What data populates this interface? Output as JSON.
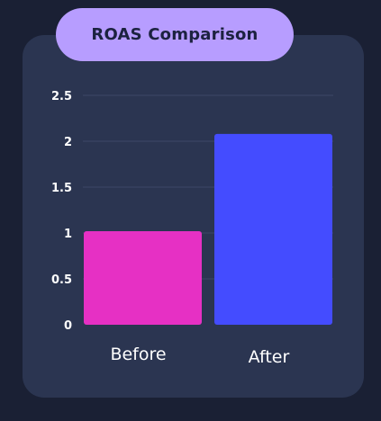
{
  "chart_data": {
    "type": "bar",
    "title": "ROAS Comparison",
    "categories": [
      "Before",
      "After"
    ],
    "values": [
      1.02,
      2.08
    ],
    "colors": [
      "#e630c4",
      "#444cff"
    ],
    "ylim": [
      0,
      2.5
    ],
    "yticks": [
      "0",
      "0.5",
      "1",
      "1.5",
      "2",
      "2.5"
    ],
    "grid": true,
    "xlabel": "",
    "ylabel": ""
  },
  "colors": {
    "background": "#1a2034",
    "card": "#2b3551",
    "title_pill": "#b79dff"
  }
}
